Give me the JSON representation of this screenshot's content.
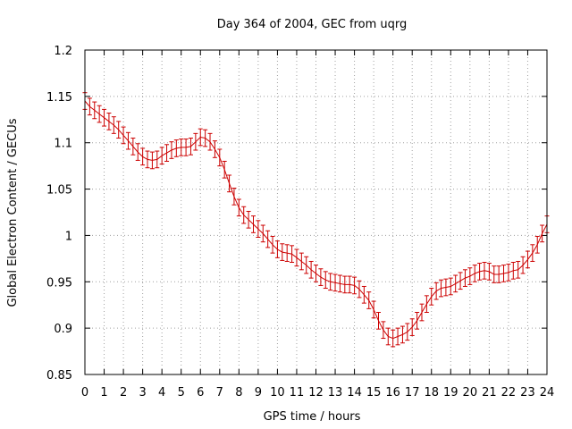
{
  "chart_data": {
    "type": "line",
    "title": "Day 364 of 2004, GEC from uqrg",
    "xlabel": "GPS time / hours",
    "ylabel": "Global Electron Content / GECUs",
    "xlim": [
      0,
      24
    ],
    "ylim": [
      0.85,
      1.2
    ],
    "xticks": [
      0,
      1,
      2,
      3,
      4,
      5,
      6,
      7,
      8,
      9,
      10,
      11,
      12,
      13,
      14,
      15,
      16,
      17,
      18,
      19,
      20,
      21,
      22,
      23,
      24
    ],
    "yticks": [
      0.85,
      0.9,
      0.95,
      1,
      1.05,
      1.1,
      1.15,
      1.2
    ],
    "ytick_labels": [
      "0.85",
      "0.9",
      "0.95",
      "1",
      "1.05",
      "1.1",
      "1.15",
      "1.2"
    ],
    "grid": true,
    "series": [
      {
        "color": "#cc0000",
        "x": [
          0,
          0.25,
          0.5,
          0.75,
          1,
          1.25,
          1.5,
          1.75,
          2,
          2.25,
          2.5,
          2.75,
          3,
          3.25,
          3.5,
          3.75,
          4,
          4.25,
          4.5,
          4.75,
          5,
          5.25,
          5.5,
          5.75,
          6,
          6.25,
          6.5,
          6.75,
          7,
          7.25,
          7.5,
          7.75,
          8,
          8.25,
          8.5,
          8.75,
          9,
          9.25,
          9.5,
          9.75,
          10,
          10.25,
          10.5,
          10.75,
          11,
          11.25,
          11.5,
          11.75,
          12,
          12.25,
          12.5,
          12.75,
          13,
          13.25,
          13.5,
          13.75,
          14,
          14.25,
          14.5,
          14.75,
          15,
          15.25,
          15.5,
          15.75,
          16,
          16.25,
          16.5,
          16.75,
          17,
          17.25,
          17.5,
          17.75,
          18,
          18.25,
          18.5,
          18.75,
          19,
          19.25,
          19.5,
          19.75,
          20,
          20.25,
          20.5,
          20.75,
          21,
          21.25,
          21.5,
          21.75,
          22,
          22.25,
          22.5,
          22.75,
          23,
          23.25,
          23.5,
          23.75,
          24
        ],
        "y": [
          1.145,
          1.139,
          1.135,
          1.131,
          1.127,
          1.123,
          1.119,
          1.114,
          1.108,
          1.102,
          1.096,
          1.09,
          1.085,
          1.082,
          1.081,
          1.082,
          1.086,
          1.089,
          1.092,
          1.094,
          1.095,
          1.095,
          1.096,
          1.101,
          1.106,
          1.105,
          1.101,
          1.093,
          1.084,
          1.071,
          1.056,
          1.042,
          1.03,
          1.022,
          1.017,
          1.012,
          1.007,
          1.002,
          0.996,
          0.99,
          0.985,
          0.982,
          0.981,
          0.98,
          0.976,
          0.972,
          0.968,
          0.963,
          0.959,
          0.955,
          0.952,
          0.95,
          0.949,
          0.948,
          0.947,
          0.947,
          0.946,
          0.942,
          0.936,
          0.93,
          0.92,
          0.908,
          0.898,
          0.891,
          0.889,
          0.891,
          0.893,
          0.896,
          0.901,
          0.908,
          0.917,
          0.926,
          0.934,
          0.94,
          0.943,
          0.944,
          0.945,
          0.948,
          0.951,
          0.954,
          0.956,
          0.959,
          0.961,
          0.962,
          0.961,
          0.958,
          0.958,
          0.959,
          0.96,
          0.962,
          0.963,
          0.968,
          0.974,
          0.981,
          0.99,
          1.002,
          1.012
        ],
        "err": 0.009
      }
    ]
  }
}
